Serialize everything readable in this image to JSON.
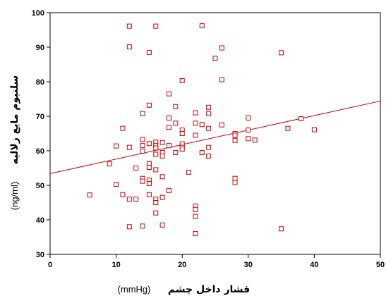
{
  "chart_data": {
    "type": "scatter",
    "xlabel": "فشار داخل چشم",
    "xlabel_unit": "(mmHg)",
    "ylabel": "سلنیوم مایع زلالیه",
    "ylabel_unit": "(ng/ml)",
    "xlim": [
      0,
      50
    ],
    "ylim": [
      30,
      100
    ],
    "x_ticks": [
      0,
      10,
      20,
      30,
      40,
      50
    ],
    "y_ticks": [
      30,
      40,
      50,
      60,
      70,
      80,
      90,
      100
    ],
    "grid": false,
    "marker_color": "#cc0000",
    "line_color": "#cc0000",
    "fit_line": {
      "x": [
        0,
        50
      ],
      "y": [
        53.4,
        74.4
      ]
    },
    "points": [
      [
        6,
        47.2
      ],
      [
        9,
        56.2
      ],
      [
        10,
        61.4
      ],
      [
        10,
        50.3
      ],
      [
        11,
        66.5
      ],
      [
        11,
        47.3
      ],
      [
        12,
        96.1
      ],
      [
        12,
        90.1
      ],
      [
        12,
        61
      ],
      [
        12,
        46
      ],
      [
        12,
        38
      ],
      [
        13,
        55
      ],
      [
        13,
        46
      ],
      [
        14,
        70.8
      ],
      [
        14,
        63.3
      ],
      [
        14,
        61.5
      ],
      [
        14,
        59.9
      ],
      [
        14,
        52
      ],
      [
        14,
        51.2
      ],
      [
        14,
        38.2
      ],
      [
        15,
        88.5
      ],
      [
        15,
        73.2
      ],
      [
        15,
        62.1
      ],
      [
        15,
        56.3
      ],
      [
        15,
        55.2
      ],
      [
        15,
        51.5
      ],
      [
        15,
        50.5
      ],
      [
        15,
        47.3
      ],
      [
        16,
        96.1
      ],
      [
        16,
        62.5
      ],
      [
        16,
        61.5
      ],
      [
        16,
        60.8
      ],
      [
        16,
        59
      ],
      [
        16,
        54.5
      ],
      [
        16,
        46
      ],
      [
        16,
        45
      ],
      [
        16,
        42
      ],
      [
        17,
        62.4
      ],
      [
        17,
        59.5
      ],
      [
        17,
        58.5
      ],
      [
        17,
        52.5
      ],
      [
        17,
        46.5
      ],
      [
        17,
        38.5
      ],
      [
        18,
        76.5
      ],
      [
        18,
        69.5
      ],
      [
        18,
        66.8
      ],
      [
        18,
        61.5
      ],
      [
        18,
        48.5
      ],
      [
        19,
        72.8
      ],
      [
        19,
        68
      ],
      [
        19,
        59.5
      ],
      [
        20,
        80.3
      ],
      [
        20,
        66
      ],
      [
        20,
        65
      ],
      [
        20,
        62
      ],
      [
        20,
        61
      ],
      [
        20,
        60.5
      ],
      [
        21,
        53.8
      ],
      [
        22,
        71
      ],
      [
        22,
        68
      ],
      [
        22,
        64.5
      ],
      [
        22,
        44
      ],
      [
        22,
        43
      ],
      [
        22,
        41
      ],
      [
        22,
        36
      ],
      [
        23,
        96.2
      ],
      [
        23,
        67.6
      ],
      [
        23,
        59.5
      ],
      [
        24,
        72.6
      ],
      [
        24,
        70.8
      ],
      [
        24,
        66.5
      ],
      [
        24,
        61
      ],
      [
        24,
        58.5
      ],
      [
        25,
        86.8
      ],
      [
        26,
        89.8
      ],
      [
        26,
        80.6
      ],
      [
        26,
        67.5
      ],
      [
        28,
        65
      ],
      [
        28,
        64.5
      ],
      [
        28,
        63
      ],
      [
        28,
        52
      ],
      [
        28,
        50.8
      ],
      [
        30,
        69.5
      ],
      [
        30,
        66
      ],
      [
        30,
        63.5
      ],
      [
        31,
        63.1
      ],
      [
        35,
        88.4
      ],
      [
        35,
        37.4
      ],
      [
        36,
        66.5
      ],
      [
        38,
        69.3
      ],
      [
        40,
        66.1
      ]
    ]
  }
}
